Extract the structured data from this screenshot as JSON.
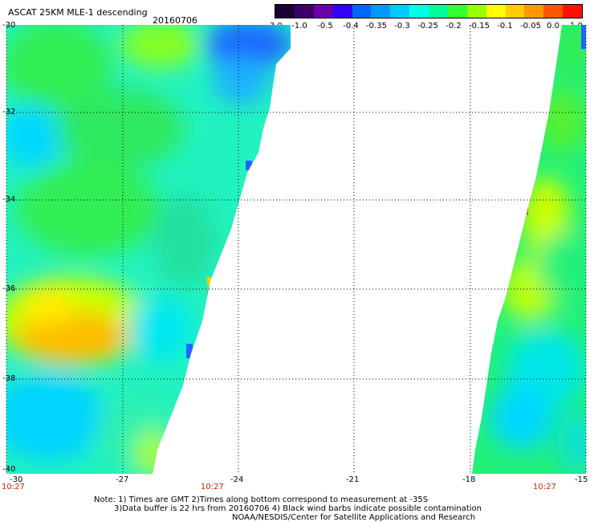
{
  "header": {
    "title": "ASCAT 25KM MLE-1 descending",
    "date": "20160706"
  },
  "colorbar": {
    "labels": [
      "-3.0",
      "-1.0",
      "-0.5",
      "-0.4",
      "-0.35",
      "-0.3",
      "-0.25",
      "-0.2",
      "-0.15",
      "-0.1",
      "-0.05",
      "0.0",
      "1.0"
    ],
    "colors": [
      "#1a0033",
      "#3d0066",
      "#6a00a8",
      "#3300ff",
      "#0066ff",
      "#0099ff",
      "#00ccff",
      "#00ffe6",
      "#00ff99",
      "#33ff33",
      "#99ff00",
      "#ffff00",
      "#ffcc00",
      "#ff9900",
      "#ff5500",
      "#ff1100"
    ]
  },
  "axes": {
    "x_ticks": [
      "-30",
      "-27",
      "-24",
      "-21",
      "-18",
      "-15"
    ],
    "y_ticks": [
      "-30",
      "-32",
      "-34",
      "-36",
      "-38",
      "-40"
    ],
    "time_labels": [
      "10:27",
      "10:27",
      "10:27"
    ]
  },
  "notes": {
    "line1": "Note: 1) Times are GMT 2)Times along bottom correspond to measurement at -35S",
    "line2": "3)Data buffer is 22 hrs from 20160706 4) Black wind barbs indicate possible contamination",
    "line3": "NOAA/NESDIS/Center for Satellite Applications and Research"
  }
}
